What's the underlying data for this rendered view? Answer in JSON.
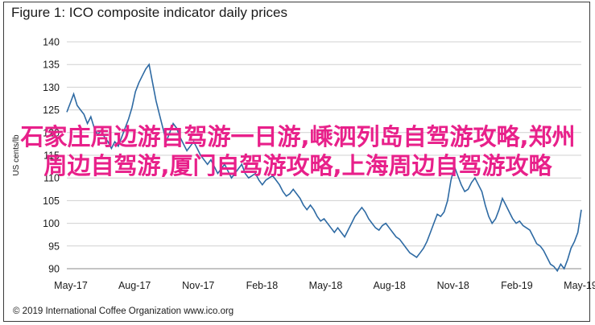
{
  "chart_data": {
    "type": "line",
    "title": "Figure 1: ICO composite indicator daily prices",
    "ylabel": "US cents/lb",
    "xlabel": "",
    "ylim": [
      90,
      140
    ],
    "yticks": [
      90,
      95,
      100,
      105,
      110,
      115,
      120,
      125,
      130,
      135,
      140
    ],
    "xticks": [
      "May-17",
      "Aug-17",
      "Nov-17",
      "Feb-18",
      "May-18",
      "Aug-18",
      "Nov-18",
      "Feb-19",
      "May-19"
    ],
    "grid": "horizontal",
    "line_color": "#2e6aa3",
    "series": [
      {
        "values": [
          [
            0,
            124.5
          ],
          [
            1,
            126.5
          ],
          [
            2,
            128.5
          ],
          [
            3,
            126
          ],
          [
            4,
            125
          ],
          [
            5,
            124
          ],
          [
            6,
            122
          ],
          [
            7,
            123.5
          ],
          [
            8,
            121
          ],
          [
            9,
            119.5
          ],
          [
            10,
            120.5
          ],
          [
            11,
            119
          ],
          [
            12,
            118
          ],
          [
            13,
            116.5
          ],
          [
            14,
            118
          ],
          [
            15,
            117
          ],
          [
            16,
            119
          ],
          [
            17,
            121
          ],
          [
            18,
            123
          ],
          [
            19,
            125.5
          ],
          [
            20,
            129
          ],
          [
            21,
            131
          ],
          [
            22,
            132.5
          ],
          [
            23,
            134
          ],
          [
            24,
            135
          ],
          [
            25,
            131
          ],
          [
            26,
            127
          ],
          [
            27,
            124
          ],
          [
            28,
            121
          ],
          [
            29,
            118
          ],
          [
            30,
            120
          ],
          [
            31,
            122
          ],
          [
            32,
            121
          ],
          [
            33,
            119
          ],
          [
            34,
            117.5
          ],
          [
            35,
            116
          ],
          [
            36,
            117
          ],
          [
            37,
            118
          ],
          [
            38,
            116.5
          ],
          [
            39,
            115
          ],
          [
            40,
            114
          ],
          [
            41,
            113
          ],
          [
            42,
            114
          ],
          [
            43,
            112.5
          ],
          [
            44,
            111
          ],
          [
            45,
            112
          ],
          [
            46,
            113
          ],
          [
            47,
            111.5
          ],
          [
            48,
            110
          ],
          [
            49,
            111
          ],
          [
            50,
            112
          ],
          [
            51,
            113
          ],
          [
            52,
            111
          ],
          [
            53,
            110
          ],
          [
            54,
            110.5
          ],
          [
            55,
            111
          ],
          [
            56,
            109.5
          ],
          [
            57,
            108.5
          ],
          [
            58,
            109.5
          ],
          [
            59,
            110
          ],
          [
            60,
            110.5
          ],
          [
            61,
            109.5
          ],
          [
            62,
            108.5
          ],
          [
            63,
            107
          ],
          [
            64,
            106
          ],
          [
            65,
            106.5
          ],
          [
            66,
            107.5
          ],
          [
            67,
            106.5
          ],
          [
            68,
            105.5
          ],
          [
            69,
            104
          ],
          [
            70,
            103
          ],
          [
            71,
            104
          ],
          [
            72,
            103
          ],
          [
            73,
            101.5
          ],
          [
            74,
            100.5
          ],
          [
            75,
            101
          ],
          [
            76,
            100
          ],
          [
            77,
            99
          ],
          [
            78,
            98
          ],
          [
            79,
            99
          ],
          [
            80,
            98
          ],
          [
            81,
            97
          ],
          [
            82,
            98.5
          ],
          [
            83,
            100
          ],
          [
            84,
            101.5
          ],
          [
            85,
            102.5
          ],
          [
            86,
            103.5
          ],
          [
            87,
            102.5
          ],
          [
            88,
            101
          ],
          [
            89,
            100
          ],
          [
            90,
            99
          ],
          [
            91,
            98.5
          ],
          [
            92,
            99.5
          ],
          [
            93,
            100
          ],
          [
            94,
            99
          ],
          [
            95,
            98
          ],
          [
            96,
            97
          ],
          [
            97,
            96.5
          ],
          [
            98,
            95.5
          ],
          [
            99,
            94.5
          ],
          [
            100,
            93.5
          ],
          [
            101,
            93
          ],
          [
            102,
            92.5
          ],
          [
            103,
            93.5
          ],
          [
            104,
            94.5
          ],
          [
            105,
            96
          ],
          [
            106,
            98
          ],
          [
            107,
            100
          ],
          [
            108,
            102
          ],
          [
            109,
            101.5
          ],
          [
            110,
            102.5
          ],
          [
            111,
            105
          ],
          [
            112,
            109.5
          ],
          [
            113,
            112.5
          ],
          [
            114,
            110.5
          ],
          [
            115,
            108.5
          ],
          [
            116,
            107
          ],
          [
            117,
            107.5
          ],
          [
            118,
            109
          ],
          [
            119,
            110
          ],
          [
            120,
            108.5
          ],
          [
            121,
            107
          ],
          [
            122,
            104
          ],
          [
            123,
            101.5
          ],
          [
            124,
            100
          ],
          [
            125,
            101
          ],
          [
            126,
            103
          ],
          [
            127,
            105.5
          ],
          [
            128,
            104
          ],
          [
            129,
            102.5
          ],
          [
            130,
            101
          ],
          [
            131,
            100
          ],
          [
            132,
            100.5
          ],
          [
            133,
            99.5
          ],
          [
            134,
            99
          ],
          [
            135,
            98.5
          ],
          [
            136,
            97
          ],
          [
            137,
            95.5
          ],
          [
            138,
            95
          ],
          [
            139,
            94
          ],
          [
            140,
            92.5
          ],
          [
            141,
            91
          ],
          [
            142,
            90.5
          ],
          [
            143,
            89.5
          ],
          [
            144,
            91
          ],
          [
            145,
            90
          ],
          [
            146,
            92
          ],
          [
            147,
            94.5
          ],
          [
            148,
            96
          ],
          [
            149,
            98
          ],
          [
            150,
            103
          ]
        ]
      }
    ],
    "x_range": [
      0,
      150
    ]
  },
  "overlay_text": "石家庄周边游自驾游一日游,嵊泗列岛自驾游攻略,郑州周边自驾游,厦门自驾游攻略,上海周边自驾游攻略",
  "copyright": "© 2019 International Coffee Organization www.ico.org"
}
